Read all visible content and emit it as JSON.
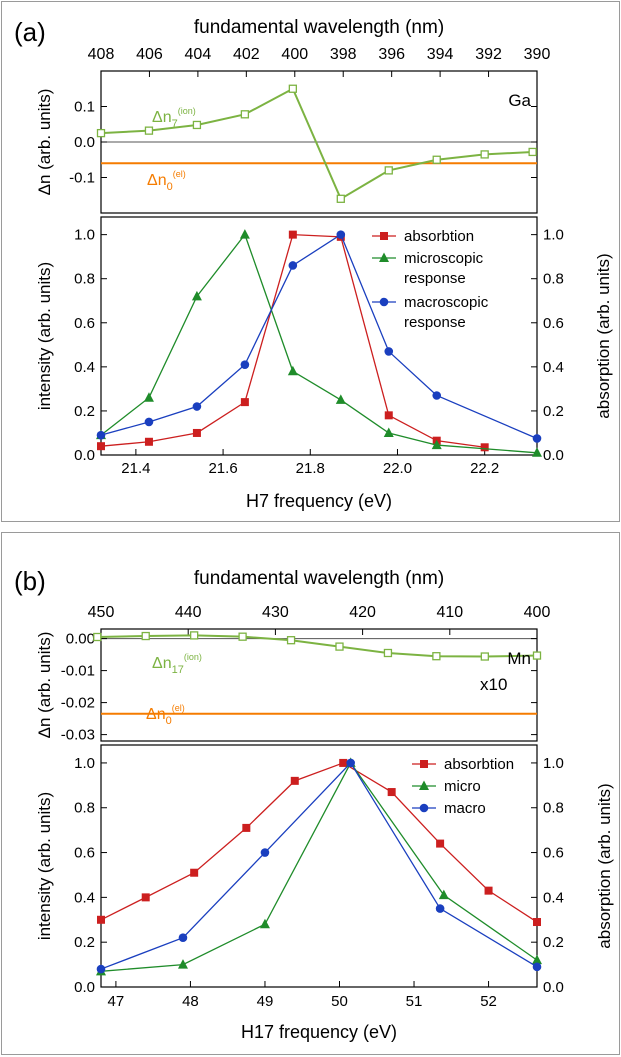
{
  "chart_data": [
    {
      "type": "line",
      "panel_label": "(a)",
      "top_axis_label": "fundamental wavelength (nm)",
      "top_ticks": [
        "408",
        "406",
        "404",
        "402",
        "400",
        "398",
        "396",
        "394",
        "392",
        "390"
      ],
      "upper": {
        "ylabel": "Δn (arb. units)",
        "ylim": [
          -0.2,
          0.2
        ],
        "yticks": [
          "0.1",
          "0.0",
          "-0.1"
        ],
        "ytick_values": [
          0.1,
          0.0,
          -0.1
        ],
        "element": "Ga",
        "series_label_main": "Δn",
        "series_label_sub": "7",
        "series_label_sup": "(ion)",
        "ref_label_main": "Δn",
        "ref_label_sub": "0",
        "ref_label_sup": "(el)",
        "ref_value": -0.06,
        "x": [
          21.32,
          21.43,
          21.54,
          21.65,
          21.76,
          21.87,
          21.98,
          22.09,
          22.2,
          22.31
        ],
        "values": [
          0.025,
          0.032,
          0.048,
          0.078,
          0.15,
          -0.16,
          -0.08,
          -0.05,
          -0.035,
          -0.028
        ]
      },
      "lower": {
        "xlabel": "H7 frequency (eV)",
        "ylabel_left": "intensity (arb. units)",
        "ylabel_right": "absorption (arb. units)",
        "xlim": [
          21.32,
          22.32
        ],
        "ylim": [
          0,
          1.08
        ],
        "xticks": [
          "21.4",
          "21.6",
          "21.8",
          "22.0",
          "22.2"
        ],
        "xtick_values": [
          21.4,
          21.6,
          21.8,
          22.0,
          22.2
        ],
        "yticks": [
          "0.0",
          "0.2",
          "0.4",
          "0.6",
          "0.8",
          "1.0"
        ],
        "ytick_values": [
          0.0,
          0.2,
          0.4,
          0.6,
          0.8,
          1.0
        ],
        "series": [
          {
            "name": "absorbtion",
            "color": "#cc1f1f",
            "marker": "square",
            "x": [
              21.32,
              21.43,
              21.54,
              21.65,
              21.76,
              21.87,
              21.98,
              22.09,
              22.2
            ],
            "values": [
              0.04,
              0.06,
              0.1,
              0.24,
              1.0,
              0.99,
              0.18,
              0.065,
              0.035
            ]
          },
          {
            "name": "microscopic\nresponse",
            "color": "#1f8c2a",
            "marker": "triangle",
            "x": [
              21.32,
              21.43,
              21.54,
              21.65,
              21.76,
              21.87,
              21.98,
              22.09,
              22.32
            ],
            "values": [
              0.09,
              0.26,
              0.72,
              1.0,
              0.38,
              0.25,
              0.1,
              0.045,
              0.01
            ]
          },
          {
            "name": "macroscopic\nresponse",
            "color": "#1a3fbf",
            "marker": "circle",
            "x": [
              21.32,
              21.43,
              21.54,
              21.65,
              21.76,
              21.87,
              21.98,
              22.09,
              22.32
            ],
            "values": [
              0.09,
              0.15,
              0.22,
              0.41,
              0.86,
              1.0,
              0.47,
              0.27,
              0.075
            ]
          }
        ]
      }
    },
    {
      "type": "line",
      "panel_label": "(b)",
      "top_axis_label": "fundamental wavelength (nm)",
      "top_ticks": [
        "450",
        "440",
        "430",
        "420",
        "410",
        "400"
      ],
      "upper": {
        "ylabel": "Δn (arb. units)",
        "ylim": [
          -0.032,
          0.003
        ],
        "yticks": [
          "0.00",
          "-0.01",
          "-0.02",
          "-0.03"
        ],
        "ytick_values": [
          0.0,
          -0.01,
          -0.02,
          -0.03
        ],
        "element": "Mn",
        "series_label_main": "Δn",
        "series_label_sub": "17",
        "series_label_sup": "(ion)",
        "scale_note": "x10",
        "ref_label_main": "Δn",
        "ref_label_sub": "0",
        "ref_label_sup": "(el)",
        "ref_value": -0.0235,
        "x": [
          46.75,
          47.4,
          48.05,
          48.7,
          49.35,
          50.0,
          50.65,
          51.3,
          51.95,
          52.65
        ],
        "values": [
          0.0005,
          0.0008,
          0.001,
          0.0006,
          -0.0005,
          -0.0025,
          -0.0045,
          -0.0055,
          -0.0056,
          -0.0053
        ]
      },
      "lower": {
        "xlabel": "H17 frequency (eV)",
        "ylabel_left": "intensity (arb. units)",
        "ylabel_right": "absorption (arb. units)",
        "xlim": [
          46.8,
          52.65
        ],
        "ylim": [
          0,
          1.08
        ],
        "xticks": [
          "47",
          "48",
          "49",
          "50",
          "51",
          "52"
        ],
        "xtick_values": [
          47,
          48,
          49,
          50,
          51,
          52
        ],
        "yticks": [
          "0.0",
          "0.2",
          "0.4",
          "0.6",
          "0.8",
          "1.0"
        ],
        "ytick_values": [
          0.0,
          0.2,
          0.4,
          0.6,
          0.8,
          1.0
        ],
        "series": [
          {
            "name": "absorbtion",
            "color": "#cc1f1f",
            "marker": "square",
            "x": [
              46.8,
              47.4,
              48.05,
              48.75,
              49.4,
              50.05,
              50.7,
              51.35,
              52.0,
              52.65
            ],
            "values": [
              0.3,
              0.4,
              0.51,
              0.71,
              0.92,
              1.0,
              0.87,
              0.64,
              0.43,
              0.29
            ]
          },
          {
            "name": "micro",
            "color": "#1f8c2a",
            "marker": "triangle",
            "x": [
              46.8,
              47.9,
              49.0,
              50.15,
              51.4,
              52.65
            ],
            "values": [
              0.07,
              0.1,
              0.28,
              1.0,
              0.41,
              0.12
            ]
          },
          {
            "name": "macro",
            "color": "#1a3fbf",
            "marker": "circle",
            "x": [
              46.8,
              47.9,
              49.0,
              50.15,
              51.35,
              52.65
            ],
            "values": [
              0.08,
              0.22,
              0.6,
              1.0,
              0.35,
              0.09
            ]
          }
        ]
      }
    }
  ]
}
